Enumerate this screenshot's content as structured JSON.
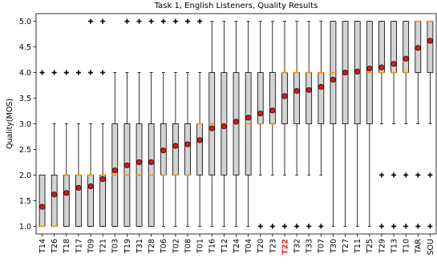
{
  "chart_data": {
    "type": "boxplot",
    "title": "Task 1, English Listeners, Quality Results",
    "xlabel": "",
    "ylabel": "Quality(MOS)",
    "ylim": [
      0.85,
      5.15
    ],
    "yticks": [
      "1.0",
      "1.5",
      "2.0",
      "2.5",
      "3.0",
      "3.5",
      "4.0",
      "4.5",
      "5.0"
    ],
    "grid": false,
    "highlight_color": "#e8262a",
    "box_fill": "#d3d3d3",
    "median_color": "#ff8c00",
    "mean_marker_color": "#d11a1a",
    "categories": [
      {
        "name": "T14",
        "q1": 1.0,
        "median": 1.0,
        "q3": 2.0,
        "whislo": 1.0,
        "whishi": 2.0,
        "mean": 1.38,
        "fliers": [
          4.0
        ]
      },
      {
        "name": "T26",
        "q1": 1.0,
        "median": 1.0,
        "q3": 2.0,
        "whislo": 1.0,
        "whishi": 3.0,
        "mean": 1.62,
        "fliers": [
          4.0
        ]
      },
      {
        "name": "T18",
        "q1": 1.0,
        "median": 2.0,
        "q3": 2.0,
        "whislo": 1.0,
        "whishi": 3.0,
        "mean": 1.65,
        "fliers": [
          4.0
        ]
      },
      {
        "name": "T17",
        "q1": 1.0,
        "median": 2.0,
        "q3": 2.0,
        "whislo": 1.0,
        "whishi": 3.0,
        "mean": 1.75,
        "fliers": [
          4.0
        ]
      },
      {
        "name": "T09",
        "q1": 1.0,
        "median": 2.0,
        "q3": 2.0,
        "whislo": 1.0,
        "whishi": 3.0,
        "mean": 1.78,
        "fliers": [
          4.0,
          5.0
        ]
      },
      {
        "name": "T21",
        "q1": 1.0,
        "median": 2.0,
        "q3": 2.0,
        "whislo": 1.0,
        "whishi": 3.0,
        "mean": 1.92,
        "fliers": [
          4.0,
          5.0
        ]
      },
      {
        "name": "T03",
        "q1": 1.0,
        "median": 2.0,
        "q3": 3.0,
        "whislo": 1.0,
        "whishi": 4.0,
        "mean": 2.09,
        "fliers": []
      },
      {
        "name": "T19",
        "q1": 1.0,
        "median": 2.0,
        "q3": 3.0,
        "whislo": 1.0,
        "whishi": 4.0,
        "mean": 2.19,
        "fliers": [
          5.0
        ]
      },
      {
        "name": "T31",
        "q1": 1.0,
        "median": 2.0,
        "q3": 3.0,
        "whislo": 1.0,
        "whishi": 4.0,
        "mean": 2.25,
        "fliers": [
          5.0
        ]
      },
      {
        "name": "T28",
        "q1": 1.0,
        "median": 2.0,
        "q3": 3.0,
        "whislo": 1.0,
        "whishi": 4.0,
        "mean": 2.25,
        "fliers": [
          5.0
        ]
      },
      {
        "name": "T06",
        "q1": 2.0,
        "median": 2.0,
        "q3": 3.0,
        "whislo": 1.0,
        "whishi": 4.0,
        "mean": 2.48,
        "fliers": [
          5.0
        ]
      },
      {
        "name": "T02",
        "q1": 2.0,
        "median": 2.0,
        "q3": 3.0,
        "whislo": 1.0,
        "whishi": 4.0,
        "mean": 2.57,
        "fliers": [
          5.0
        ]
      },
      {
        "name": "T08",
        "q1": 2.0,
        "median": 2.0,
        "q3": 3.0,
        "whislo": 1.0,
        "whishi": 4.0,
        "mean": 2.6,
        "fliers": [
          5.0
        ]
      },
      {
        "name": "T01",
        "q1": 2.0,
        "median": 3.0,
        "q3": 3.0,
        "whislo": 1.0,
        "whishi": 4.0,
        "mean": 2.68,
        "fliers": [
          5.0
        ]
      },
      {
        "name": "T16",
        "q1": 2.0,
        "median": 3.0,
        "q3": 4.0,
        "whislo": 1.0,
        "whishi": 5.0,
        "mean": 2.91,
        "fliers": []
      },
      {
        "name": "T12",
        "q1": 2.0,
        "median": 3.0,
        "q3": 4.0,
        "whislo": 1.0,
        "whishi": 5.0,
        "mean": 2.95,
        "fliers": []
      },
      {
        "name": "T24",
        "q1": 2.0,
        "median": 3.0,
        "q3": 4.0,
        "whislo": 1.0,
        "whishi": 5.0,
        "mean": 3.04,
        "fliers": []
      },
      {
        "name": "T04",
        "q1": 2.0,
        "median": 3.0,
        "q3": 4.0,
        "whislo": 1.0,
        "whishi": 5.0,
        "mean": 3.12,
        "fliers": []
      },
      {
        "name": "T20",
        "q1": 3.0,
        "median": 3.0,
        "q3": 4.0,
        "whislo": 2.0,
        "whishi": 5.0,
        "mean": 3.2,
        "fliers": [
          1.0
        ]
      },
      {
        "name": "T23",
        "q1": 3.0,
        "median": 3.0,
        "q3": 4.0,
        "whislo": 2.0,
        "whishi": 5.0,
        "mean": 3.26,
        "fliers": [
          1.0
        ]
      },
      {
        "name": "T22",
        "q1": 3.0,
        "median": 4.0,
        "q3": 4.0,
        "whislo": 2.0,
        "whishi": 5.0,
        "mean": 3.54,
        "fliers": [
          1.0
        ],
        "highlight": true
      },
      {
        "name": "T32",
        "q1": 3.0,
        "median": 4.0,
        "q3": 4.0,
        "whislo": 2.0,
        "whishi": 5.0,
        "mean": 3.64,
        "fliers": [
          1.0
        ]
      },
      {
        "name": "T33",
        "q1": 3.0,
        "median": 4.0,
        "q3": 4.0,
        "whislo": 2.0,
        "whishi": 5.0,
        "mean": 3.66,
        "fliers": [
          1.0
        ]
      },
      {
        "name": "T07",
        "q1": 3.0,
        "median": 4.0,
        "q3": 4.0,
        "whislo": 2.0,
        "whishi": 5.0,
        "mean": 3.72,
        "fliers": [
          1.0
        ]
      },
      {
        "name": "T30",
        "q1": 3.0,
        "median": 4.0,
        "q3": 5.0,
        "whislo": 1.0,
        "whishi": 5.0,
        "mean": 3.86,
        "fliers": []
      },
      {
        "name": "T27",
        "q1": 3.0,
        "median": 4.0,
        "q3": 5.0,
        "whislo": 1.0,
        "whishi": 5.0,
        "mean": 4.0,
        "fliers": []
      },
      {
        "name": "T11",
        "q1": 3.0,
        "median": 4.0,
        "q3": 5.0,
        "whislo": 1.0,
        "whishi": 5.0,
        "mean": 4.02,
        "fliers": []
      },
      {
        "name": "T25",
        "q1": 3.0,
        "median": 4.0,
        "q3": 5.0,
        "whislo": 1.0,
        "whishi": 5.0,
        "mean": 4.08,
        "fliers": []
      },
      {
        "name": "T29",
        "q1": 4.0,
        "median": 4.0,
        "q3": 5.0,
        "whislo": 3.0,
        "whishi": 5.0,
        "mean": 4.1,
        "fliers": [
          1.0,
          2.0
        ]
      },
      {
        "name": "T13",
        "q1": 4.0,
        "median": 4.0,
        "q3": 5.0,
        "whislo": 3.0,
        "whishi": 5.0,
        "mean": 4.17,
        "fliers": [
          1.0,
          2.0
        ]
      },
      {
        "name": "T10",
        "q1": 4.0,
        "median": 4.0,
        "q3": 5.0,
        "whislo": 3.0,
        "whishi": 5.0,
        "mean": 4.27,
        "fliers": [
          1.0,
          2.0
        ]
      },
      {
        "name": "TAR",
        "q1": 4.0,
        "median": 5.0,
        "q3": 5.0,
        "whislo": 3.0,
        "whishi": 5.0,
        "mean": 4.48,
        "fliers": [
          1.0,
          2.0
        ]
      },
      {
        "name": "SOU",
        "q1": 4.0,
        "median": 5.0,
        "q3": 5.0,
        "whislo": 3.0,
        "whishi": 5.0,
        "mean": 4.62,
        "fliers": [
          1.0,
          2.0
        ]
      }
    ]
  }
}
